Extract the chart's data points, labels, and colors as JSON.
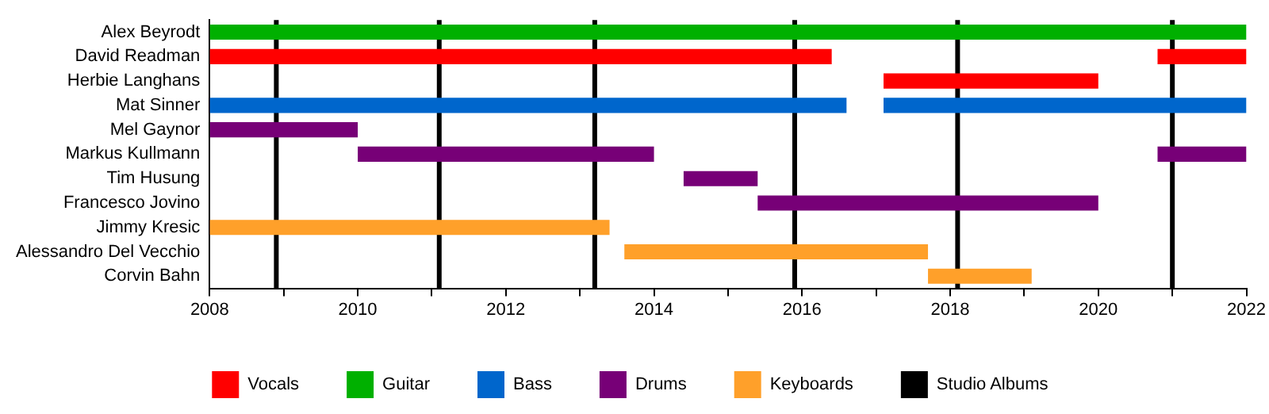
{
  "chart_data": {
    "type": "bar",
    "orientation": "horizontal",
    "categories": [
      "Alex Beyrodt",
      "David Readman",
      "Herbie Langhans",
      "Mat Sinner",
      "Mel Gaynor",
      "Markus Kullmann",
      "Tim Husung",
      "Francesco Jovino",
      "Jimmy Kresic",
      "Alessandro Del Vecchio",
      "Corvin Bahn"
    ],
    "series": [
      {
        "name": "Vocals",
        "color": "#ff0000",
        "base": [
          null,
          2008,
          2017.1,
          null,
          null,
          null,
          null,
          null,
          null,
          null,
          null
        ],
        "values": [
          null,
          8.4,
          2.9,
          null,
          null,
          null,
          null,
          null,
          null,
          null,
          null
        ]
      },
      {
        "name": "Guitar",
        "color": "#00b000",
        "base": [
          2008,
          null,
          null,
          null,
          null,
          null,
          null,
          null,
          null,
          null,
          null
        ],
        "values": [
          14,
          null,
          null,
          null,
          null,
          null,
          null,
          null,
          null,
          null,
          null
        ]
      },
      {
        "name": "Bass",
        "color": "#0066cc",
        "base": [
          null,
          null,
          null,
          2008,
          null,
          null,
          null,
          null,
          null,
          null,
          null
        ],
        "values": [
          null,
          null,
          null,
          8.6,
          null,
          null,
          null,
          null,
          null,
          null,
          null
        ]
      },
      {
        "name": "Drums",
        "color": "#770077",
        "base": [
          null,
          null,
          null,
          null,
          2008,
          2010,
          2014.4,
          2015.4,
          null,
          null,
          null
        ],
        "values": [
          null,
          null,
          null,
          null,
          2.0,
          4.0,
          1.0,
          4.6,
          null,
          null,
          null
        ]
      },
      {
        "name": "Keyboards",
        "color": "#ffa02a",
        "base": [
          null,
          null,
          null,
          null,
          null,
          null,
          null,
          null,
          2008,
          2013.6,
          2017.7
        ],
        "values": [
          null,
          null,
          null,
          null,
          null,
          null,
          null,
          null,
          5.4,
          4.1,
          1.4
        ]
      },
      {
        "color": "#ff0000",
        "base": [
          null,
          2020.8,
          null,
          null,
          null,
          null,
          null,
          null,
          null,
          null,
          null
        ],
        "values": [
          null,
          1.2,
          null,
          null,
          null,
          null,
          null,
          null,
          null,
          null,
          null
        ]
      },
      {
        "color": "#0066cc",
        "base": [
          null,
          null,
          null,
          2017.1,
          null,
          null,
          null,
          null,
          null,
          null,
          null
        ],
        "values": [
          null,
          null,
          null,
          4.9,
          null,
          null,
          null,
          null,
          null,
          null,
          null
        ]
      },
      {
        "color": "#770077",
        "base": [
          null,
          null,
          null,
          null,
          null,
          2020.8,
          null,
          null,
          null,
          null,
          null
        ],
        "values": [
          null,
          null,
          null,
          null,
          null,
          1.2,
          null,
          null,
          null,
          null,
          null
        ]
      }
    ],
    "xlim": [
      2008,
      2022
    ],
    "xticks": [
      2008,
      {
        "value": 2009,
        "label": null
      },
      2010,
      {
        "value": 2011,
        "label": null
      },
      2012,
      {
        "value": 2013,
        "label": null
      },
      2014,
      {
        "value": 2015,
        "label": null
      },
      2016,
      {
        "value": 2017,
        "label": null
      },
      2018,
      {
        "value": 2019,
        "label": null
      },
      2020,
      {
        "value": 2021,
        "label": null
      },
      2022
    ],
    "ref_lines": [
      {
        "axis": "x",
        "value": 2008.9,
        "label": "Studio Albums",
        "color": "#000000"
      },
      {
        "axis": "x",
        "value": 2011.1,
        "color": "#000000"
      },
      {
        "axis": "x",
        "value": 2013.2,
        "color": "#000000"
      },
      {
        "axis": "x",
        "value": 2015.9,
        "color": "#000000"
      },
      {
        "axis": "x",
        "value": 2018.1,
        "color": "#000000"
      },
      {
        "axis": "x",
        "value": 2021.0,
        "color": "#000000"
      }
    ],
    "legend": "bottom",
    "grid": false
  }
}
